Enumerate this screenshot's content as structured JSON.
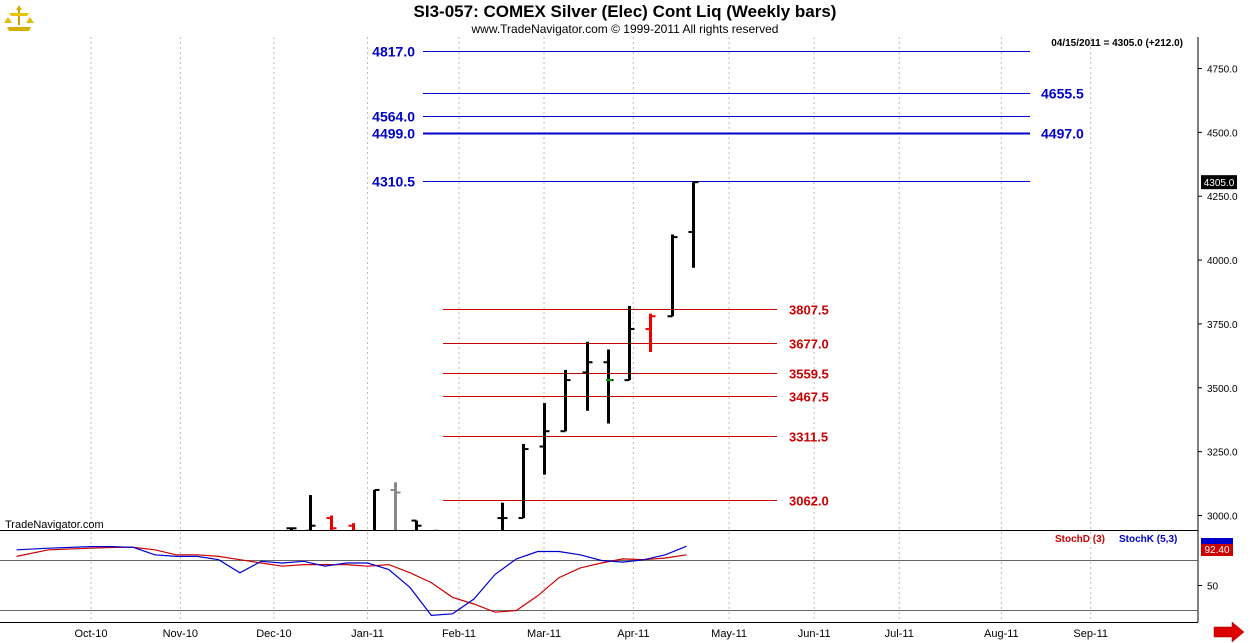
{
  "header": {
    "title": "SI3-057:  COMEX Silver (Elec) Cont Liq  (Weekly bars)",
    "subtitle": "www.TradeNavigator.com © 1999-2011 All rights reserved"
  },
  "colors": {
    "blue_level": "#0000cc",
    "red_level": "#cc0000",
    "bar": "#000000",
    "bar_down_red": "#ee0000",
    "bar_gray": "#888888",
    "bar_green": "#00aa00",
    "stoch_d": "#cc0000",
    "stoch_k": "#0000cc",
    "grid": "#bbbbbb"
  },
  "chart_data": [
    {
      "type": "bar",
      "subtype": "ohlc",
      "title": "SI3-057:  COMEX Silver (Elec) Cont Liq  (Weekly bars)",
      "date_info": "04/15/2011 = 4305.0 (+212.0)",
      "last_price_label": "4305.0",
      "ylim": [
        2900,
        4850
      ],
      "y_ticks": [
        3000.0,
        3250.0,
        3500.0,
        3750.0,
        4000.0,
        4250.0,
        4500.0,
        4750.0
      ],
      "y_tick_labels": [
        "3000.0",
        "3250.0",
        "3500.0",
        "3750.0",
        "4000.0",
        "4250.0",
        "4500.0",
        "4750.0"
      ],
      "x_tick_labels": [
        "Oct-10",
        "Nov-10",
        "Dec-10",
        "Jan-11",
        "Feb-11",
        "Mar-11",
        "Apr-11",
        "May-11",
        "Jun-11",
        "Jul-11",
        "Aug-11",
        "Sep-11"
      ],
      "x_ticks_week": [
        0,
        4.2,
        8.6,
        13.0,
        17.3,
        21.3,
        25.5,
        30.0,
        34.0,
        38.0,
        42.8,
        47.0
      ],
      "watermark": "TradeNavigator.com",
      "grid": true,
      "levels_blue": [
        {
          "label": "4817.0",
          "value": 4817.0,
          "side": "left"
        },
        {
          "label": "4655.5",
          "value": 4655.5,
          "side": "right"
        },
        {
          "label": "4564.0",
          "value": 4564.0,
          "side": "left"
        },
        {
          "label": "4499.0",
          "value": 4499.0,
          "side": "left"
        },
        {
          "label": "4497.0",
          "value": 4497.0,
          "side": "right"
        },
        {
          "label": "4310.5",
          "value": 4310.5,
          "side": "left"
        }
      ],
      "levels_red": [
        {
          "label": "3807.5",
          "value": 3807.5
        },
        {
          "label": "3677.0",
          "value": 3677.0
        },
        {
          "label": "3559.5",
          "value": 3559.5
        },
        {
          "label": "3467.5",
          "value": 3467.5
        },
        {
          "label": "3311.5",
          "value": 3311.5
        },
        {
          "label": "3062.0",
          "value": 3062.0
        }
      ],
      "bars": [
        {
          "week": 9.4,
          "open": 2950,
          "high": 2950,
          "low": 2900,
          "close": 2950,
          "color": "black"
        },
        {
          "week": 10.3,
          "open": 2940,
          "high": 3080,
          "low": 2900,
          "close": 2960,
          "color": "black"
        },
        {
          "week": 11.3,
          "open": 2990,
          "high": 3000,
          "low": 2900,
          "close": 2950,
          "color": "red"
        },
        {
          "week": 12.3,
          "open": 2960,
          "high": 2970,
          "low": 2900,
          "close": 2940,
          "color": "red"
        },
        {
          "week": 13.3,
          "open": 2920,
          "high": 3100,
          "low": 2900,
          "close": 3100,
          "color": "black"
        },
        {
          "week": 14.3,
          "open": 3100,
          "high": 3130,
          "low": 2900,
          "close": 3090,
          "color": "gray"
        },
        {
          "week": 15.3,
          "open": 2980,
          "high": 2980,
          "low": 2900,
          "close": 2960,
          "color": "black"
        },
        {
          "week": 16.3,
          "open": 2940,
          "high": 2940,
          "low": 2900,
          "close": 2930,
          "color": "black"
        },
        {
          "week": 19.3,
          "open": 2990,
          "high": 3050,
          "low": 2900,
          "close": 2990,
          "color": "black"
        },
        {
          "week": 20.3,
          "open": 2990,
          "high": 3280,
          "low": 2990,
          "close": 3260,
          "color": "black"
        },
        {
          "week": 21.3,
          "open": 3270,
          "high": 3440,
          "low": 3160,
          "close": 3330,
          "color": "black"
        },
        {
          "week": 22.3,
          "open": 3330,
          "high": 3570,
          "low": 3330,
          "close": 3530,
          "color": "black"
        },
        {
          "week": 23.3,
          "open": 3560,
          "high": 3680,
          "low": 3410,
          "close": 3600,
          "color": "black"
        },
        {
          "week": 24.3,
          "open": 3600,
          "high": 3650,
          "low": 3360,
          "close": 3530,
          "color": "black"
        },
        {
          "week": 25.3,
          "open": 3530,
          "high": 3820,
          "low": 3530,
          "close": 3730,
          "color": "black"
        },
        {
          "week": 26.3,
          "open": 3730,
          "high": 3790,
          "low": 3640,
          "close": 3780,
          "color": "red"
        },
        {
          "week": 27.3,
          "open": 3780,
          "high": 4100,
          "low": 3780,
          "close": 4090,
          "color": "black"
        },
        {
          "week": 28.3,
          "open": 4110,
          "high": 4305,
          "low": 3970,
          "close": 4305,
          "color": "black"
        }
      ]
    },
    {
      "type": "line",
      "title": "Stochastics",
      "legend": [
        "StochD (3)",
        "StochK (5,3)"
      ],
      "ylim": [
        0,
        100
      ],
      "y_ticks": [
        50
      ],
      "y_tick_labels": [
        "50"
      ],
      "last_value_labels": [
        "92.40"
      ],
      "x_weeks": [
        -3.5,
        -2,
        0,
        1,
        2,
        3,
        4,
        5,
        6,
        7,
        8,
        9,
        10,
        11,
        12,
        13,
        14,
        15,
        16,
        17,
        18,
        19,
        20,
        21,
        22,
        23,
        24,
        25,
        26,
        27,
        28
      ],
      "series": [
        {
          "name": "StochD (3)",
          "values": [
            80,
            88,
            90,
            91,
            91,
            88,
            82,
            82,
            80,
            76,
            72,
            68,
            70,
            70,
            70,
            68,
            70,
            60,
            48,
            30,
            22,
            12,
            14,
            32,
            54,
            66,
            72,
            77,
            76,
            78,
            82
          ]
        },
        {
          "name": "StochK (5,3)",
          "values": [
            88,
            90,
            92,
            92,
            91,
            82,
            80,
            80,
            76,
            60,
            74,
            72,
            74,
            68,
            72,
            72,
            64,
            42,
            8,
            10,
            28,
            58,
            77,
            86,
            86,
            82,
            75,
            73,
            76,
            82,
            92.4
          ]
        }
      ]
    }
  ]
}
